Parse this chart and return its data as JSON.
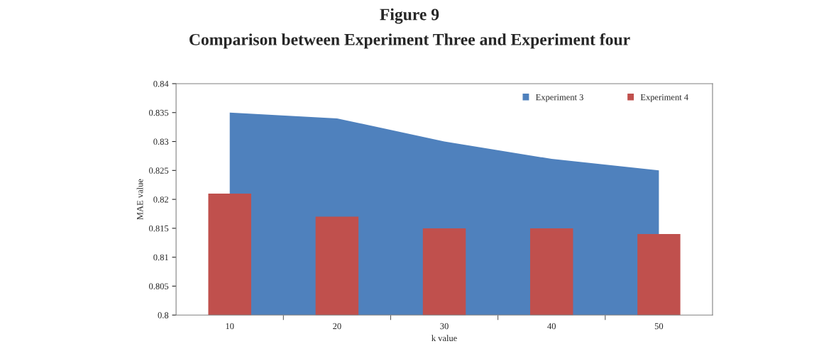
{
  "chart_data": {
    "type": "area",
    "title": "Figure 9",
    "subtitle": "Comparison between Experiment Three and Experiment four",
    "xlabel": "k value",
    "ylabel": "MAE value",
    "categories": [
      "10",
      "20",
      "30",
      "40",
      "50"
    ],
    "series": [
      {
        "name": "Experiment 3",
        "color": "#4f81bd",
        "values": [
          0.835,
          0.834,
          0.83,
          0.827,
          0.825
        ]
      },
      {
        "name": "Experiment 4",
        "type": "bar",
        "color": "#c0504d",
        "values": [
          0.821,
          0.817,
          0.815,
          0.815,
          0.814
        ]
      }
    ],
    "ylim": [
      0.8,
      0.84
    ],
    "yticks": [
      0.8,
      0.805,
      0.81,
      0.815,
      0.82,
      0.825,
      0.83,
      0.835,
      0.84
    ],
    "grid": false,
    "legend": "top right"
  }
}
